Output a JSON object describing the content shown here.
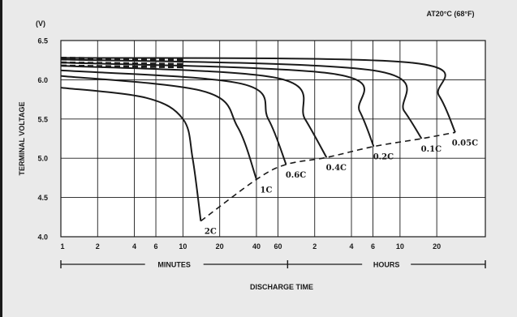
{
  "chart_data": {
    "type": "line",
    "title": "AT20°C (68°F)",
    "unit_label": "(V)",
    "ylabel": "TERMINAL VOLTAGE",
    "xlabel": "DISCHARGE TIME",
    "x_scale": "log",
    "ylim": [
      4.0,
      6.5
    ],
    "yticks": [
      "6.5",
      "6.0",
      "5.5",
      "5.0",
      "4.5",
      "4.0"
    ],
    "xticks_minutes": [
      "1",
      "2",
      "4",
      "6",
      "10",
      "20",
      "40",
      "60"
    ],
    "xticks_hours": [
      "2",
      "4",
      "6",
      "10",
      "20"
    ],
    "range_labels": {
      "minutes": "MINUTES",
      "hours": "HOURS"
    },
    "grid": true,
    "series": [
      {
        "name": "2C",
        "points": [
          [
            1,
            5.9
          ],
          [
            5,
            5.77
          ],
          [
            10,
            5.5
          ],
          [
            12,
            5.0
          ],
          [
            14,
            4.2
          ]
        ]
      },
      {
        "name": "1C",
        "points": [
          [
            1,
            6.05
          ],
          [
            15,
            5.85
          ],
          [
            28,
            5.4
          ],
          [
            40,
            4.73
          ]
        ]
      },
      {
        "name": "0.6C",
        "points": [
          [
            1,
            6.12
          ],
          [
            30,
            5.95
          ],
          [
            50,
            5.5
          ],
          [
            70,
            4.92
          ]
        ]
      },
      {
        "name": "0.4C",
        "points": [
          [
            1,
            6.18
          ],
          [
            60,
            6.02
          ],
          [
            100,
            5.5
          ],
          [
            150,
            5.01
          ]
        ]
      },
      {
        "name": "0.2C",
        "points": [
          [
            1,
            6.22
          ],
          [
            180,
            6.07
          ],
          [
            280,
            5.6
          ],
          [
            365,
            5.15
          ]
        ]
      },
      {
        "name": "0.1C",
        "points": [
          [
            1,
            6.26
          ],
          [
            360,
            6.12
          ],
          [
            650,
            5.6
          ],
          [
            900,
            5.25
          ]
        ]
      },
      {
        "name": "0.05C",
        "points": [
          [
            1,
            6.28
          ],
          [
            720,
            6.22
          ],
          [
            1250,
            5.8
          ],
          [
            1700,
            5.33
          ]
        ]
      }
    ],
    "cutoff_line": {
      "style": "dashed",
      "points": [
        [
          14,
          4.2
        ],
        [
          40,
          4.73
        ],
        [
          70,
          4.92
        ],
        [
          150,
          5.01
        ],
        [
          365,
          5.15
        ],
        [
          900,
          5.25
        ],
        [
          1700,
          5.33
        ]
      ]
    }
  }
}
